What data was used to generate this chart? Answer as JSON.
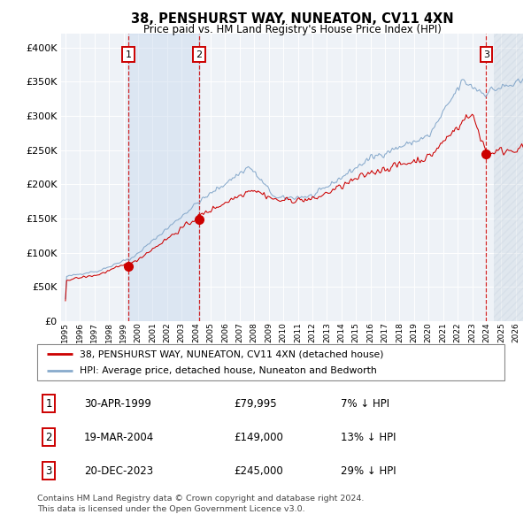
{
  "title": "38, PENSHURST WAY, NUNEATON, CV11 4XN",
  "subtitle": "Price paid vs. HM Land Registry's House Price Index (HPI)",
  "legend_label_red": "38, PENSHURST WAY, NUNEATON, CV11 4XN (detached house)",
  "legend_label_blue": "HPI: Average price, detached house, Nuneaton and Bedworth",
  "footnote1": "Contains HM Land Registry data © Crown copyright and database right 2024.",
  "footnote2": "This data is licensed under the Open Government Licence v3.0.",
  "transactions": [
    {
      "num": "1",
      "date": "30-APR-1999",
      "date_decimal": 1999.33,
      "price": 79995,
      "price_str": "£79,995",
      "pct": "7% ↓ HPI"
    },
    {
      "num": "2",
      "date": "19-MAR-2004",
      "date_decimal": 2004.21,
      "price": 149000,
      "price_str": "£149,000",
      "pct": "13% ↓ HPI"
    },
    {
      "num": "3",
      "date": "20-DEC-2023",
      "date_decimal": 2023.97,
      "price": 245000,
      "price_str": "£245,000",
      "pct": "29% ↓ HPI"
    }
  ],
  "ylim": [
    0,
    420000
  ],
  "xlim_start": 1994.7,
  "xlim_end": 2026.5,
  "bg_color": "#eef2f7",
  "grid_color": "#ffffff",
  "red_color": "#cc0000",
  "blue_color": "#88aacc",
  "hatch_region_start": 2024.5,
  "shade_t1": 1999.33,
  "shade_t2": 2004.21
}
